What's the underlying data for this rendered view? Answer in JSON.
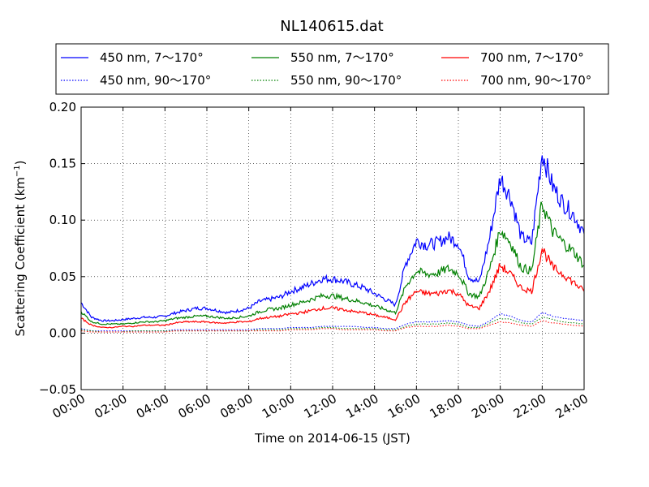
{
  "chart_data": {
    "type": "line",
    "title": "NL140615.dat",
    "xlabel": "Time on 2014-06-15 (JST)",
    "ylabel": "Scattering Coefficient (km",
    "ylabel_sup": "−1",
    "ylabel_end": ")",
    "xlim": [
      "00:00",
      "24:00"
    ],
    "ylim": [
      -0.05,
      0.2
    ],
    "grid": true,
    "legend_position": "top",
    "x_ticks": [
      "00:00",
      "02:00",
      "04:00",
      "06:00",
      "08:00",
      "10:00",
      "12:00",
      "14:00",
      "16:00",
      "18:00",
      "20:00",
      "22:00",
      "24:00"
    ],
    "y_ticks": [
      "−0.05",
      "0.00",
      "0.05",
      "0.10",
      "0.15",
      "0.20"
    ],
    "y_tick_values": [
      -0.05,
      0,
      0.05,
      0.1,
      0.15,
      0.2
    ],
    "x": [
      "00:00",
      "00:30",
      "01:00",
      "01:30",
      "02:00",
      "02:30",
      "03:00",
      "03:30",
      "04:00",
      "04:30",
      "05:00",
      "05:30",
      "06:00",
      "06:30",
      "07:00",
      "07:30",
      "08:00",
      "08:30",
      "09:00",
      "09:30",
      "10:00",
      "10:30",
      "11:00",
      "11:30",
      "12:00",
      "12:30",
      "13:00",
      "13:30",
      "14:00",
      "14:30",
      "15:00",
      "15:30",
      "16:00",
      "16:30",
      "17:00",
      "17:30",
      "18:00",
      "18:30",
      "19:00",
      "19:30",
      "20:00",
      "20:30",
      "21:00",
      "21:30",
      "22:00",
      "22:30",
      "23:00",
      "23:30",
      "24:00"
    ],
    "series": [
      {
        "name": "450 nm, 7～170°",
        "color": "#0000ff",
        "style": "solid",
        "values": [
          0.027,
          0.014,
          0.011,
          0.011,
          0.012,
          0.013,
          0.014,
          0.014,
          0.015,
          0.018,
          0.02,
          0.022,
          0.022,
          0.02,
          0.018,
          0.02,
          0.022,
          0.028,
          0.03,
          0.032,
          0.037,
          0.04,
          0.044,
          0.048,
          0.048,
          0.046,
          0.043,
          0.04,
          0.035,
          0.03,
          0.025,
          0.062,
          0.082,
          0.078,
          0.08,
          0.085,
          0.08,
          0.05,
          0.045,
          0.085,
          0.138,
          0.12,
          0.085,
          0.08,
          0.16,
          0.13,
          0.115,
          0.105,
          0.088
        ]
      },
      {
        "name": "450 nm, 90～170°",
        "color": "#0000ff",
        "style": "dotted",
        "values": [
          0.004,
          0.002,
          0.002,
          0.002,
          0.002,
          0.002,
          0.002,
          0.002,
          0.002,
          0.003,
          0.003,
          0.003,
          0.003,
          0.003,
          0.003,
          0.003,
          0.003,
          0.004,
          0.004,
          0.004,
          0.005,
          0.005,
          0.005,
          0.006,
          0.006,
          0.006,
          0.006,
          0.005,
          0.005,
          0.004,
          0.004,
          0.008,
          0.01,
          0.01,
          0.01,
          0.011,
          0.01,
          0.007,
          0.006,
          0.011,
          0.017,
          0.015,
          0.011,
          0.01,
          0.018,
          0.015,
          0.013,
          0.012,
          0.011
        ]
      },
      {
        "name": "550 nm, 7～170°",
        "color": "#008000",
        "style": "solid",
        "values": [
          0.019,
          0.01,
          0.008,
          0.008,
          0.008,
          0.009,
          0.01,
          0.01,
          0.011,
          0.013,
          0.014,
          0.015,
          0.015,
          0.014,
          0.013,
          0.014,
          0.015,
          0.019,
          0.021,
          0.022,
          0.025,
          0.027,
          0.03,
          0.033,
          0.033,
          0.031,
          0.029,
          0.027,
          0.024,
          0.021,
          0.018,
          0.042,
          0.055,
          0.052,
          0.053,
          0.057,
          0.053,
          0.035,
          0.032,
          0.057,
          0.092,
          0.08,
          0.058,
          0.055,
          0.115,
          0.09,
          0.08,
          0.072,
          0.06
        ]
      },
      {
        "name": "550 nm, 90～170°",
        "color": "#008000",
        "style": "dotted",
        "values": [
          0.003,
          0.002,
          0.001,
          0.001,
          0.001,
          0.002,
          0.002,
          0.002,
          0.002,
          0.002,
          0.002,
          0.002,
          0.002,
          0.002,
          0.002,
          0.002,
          0.002,
          0.003,
          0.003,
          0.003,
          0.004,
          0.004,
          0.004,
          0.005,
          0.005,
          0.004,
          0.004,
          0.004,
          0.004,
          0.003,
          0.003,
          0.006,
          0.008,
          0.008,
          0.008,
          0.009,
          0.008,
          0.005,
          0.005,
          0.009,
          0.013,
          0.012,
          0.009,
          0.008,
          0.014,
          0.012,
          0.01,
          0.009,
          0.008
        ]
      },
      {
        "name": "700 nm, 7～170°",
        "color": "#ff0000",
        "style": "solid",
        "values": [
          0.013,
          0.007,
          0.005,
          0.005,
          0.006,
          0.006,
          0.007,
          0.007,
          0.007,
          0.009,
          0.01,
          0.01,
          0.01,
          0.009,
          0.009,
          0.01,
          0.01,
          0.013,
          0.014,
          0.015,
          0.017,
          0.018,
          0.02,
          0.022,
          0.022,
          0.021,
          0.019,
          0.018,
          0.016,
          0.014,
          0.012,
          0.028,
          0.037,
          0.035,
          0.035,
          0.038,
          0.035,
          0.024,
          0.022,
          0.038,
          0.06,
          0.052,
          0.04,
          0.037,
          0.075,
          0.058,
          0.052,
          0.045,
          0.037
        ]
      },
      {
        "name": "700 nm, 90～170°",
        "color": "#ff0000",
        "style": "dotted",
        "values": [
          0.002,
          0.001,
          0.001,
          0.001,
          0.001,
          0.001,
          0.001,
          0.001,
          0.001,
          0.002,
          0.002,
          0.002,
          0.002,
          0.002,
          0.002,
          0.002,
          0.002,
          0.002,
          0.002,
          0.002,
          0.003,
          0.003,
          0.003,
          0.004,
          0.004,
          0.003,
          0.003,
          0.003,
          0.003,
          0.002,
          0.002,
          0.005,
          0.006,
          0.006,
          0.006,
          0.007,
          0.006,
          0.004,
          0.004,
          0.007,
          0.01,
          0.009,
          0.007,
          0.006,
          0.011,
          0.009,
          0.008,
          0.007,
          0.006
        ]
      }
    ]
  }
}
